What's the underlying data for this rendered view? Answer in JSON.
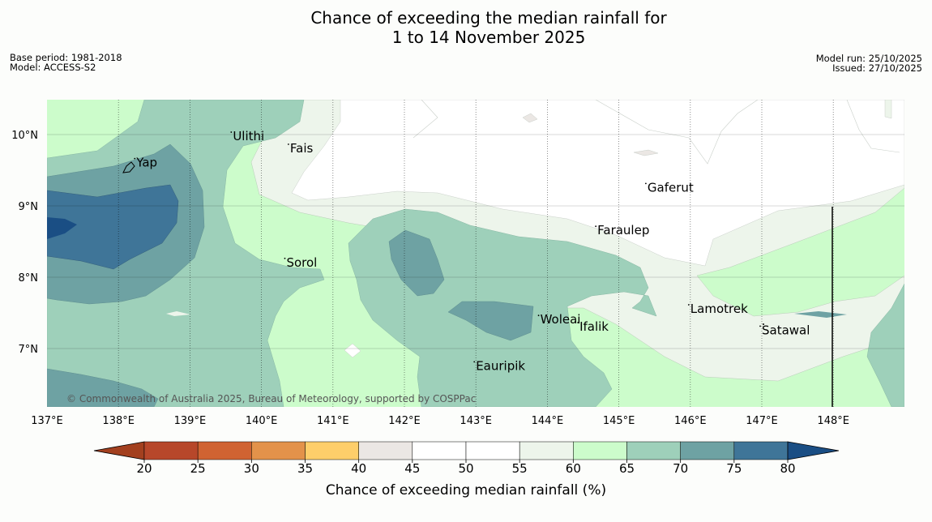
{
  "title_line1": "Chance of exceeding the median rainfall for",
  "title_line2": "1 to 14 November 2025",
  "meta_left": {
    "base_period": "Base period: 1981-2018",
    "model": "Model: ACCESS-S2"
  },
  "meta_right": {
    "model_run": "Model run: 25/10/2025",
    "issued": "Issued: 27/10/2025"
  },
  "map": {
    "lon_range": [
      137,
      149
    ],
    "lat_range": [
      6.2,
      10.5
    ],
    "lat_ticks": [
      "10°N",
      "9°N",
      "8°N",
      "7°N"
    ],
    "lon_ticks": [
      "137°E",
      "138°E",
      "139°E",
      "140°E",
      "141°E",
      "142°E",
      "143°E",
      "144°E",
      "145°E",
      "146°E",
      "147°E",
      "148°E"
    ],
    "places": [
      {
        "name": "Yap",
        "lon": 138.25,
        "lat": 9.55
      },
      {
        "name": "Ulithi",
        "lon": 139.6,
        "lat": 9.92
      },
      {
        "name": "Fais",
        "lon": 140.4,
        "lat": 9.75
      },
      {
        "name": "Gaferut",
        "lon": 145.4,
        "lat": 9.2
      },
      {
        "name": "Faraulep",
        "lon": 144.7,
        "lat": 8.6
      },
      {
        "name": "Sorol",
        "lon": 140.35,
        "lat": 8.15
      },
      {
        "name": "Lamotrek",
        "lon": 146.0,
        "lat": 7.5
      },
      {
        "name": "Satawal",
        "lon": 147.0,
        "lat": 7.2
      },
      {
        "name": "Woleai",
        "lon": 143.9,
        "lat": 7.35
      },
      {
        "name": "Ifalik",
        "lon": 144.45,
        "lat": 7.25
      },
      {
        "name": "Eauripik",
        "lon": 143.0,
        "lat": 6.7
      }
    ],
    "copyright": "© Commonwealth of Australia 2025, Bureau of Meteorology, supported by COSPPac"
  },
  "colorbar": {
    "label": "Chance of exceeding median rainfall (%)",
    "ticks": [
      "20",
      "25",
      "30",
      "35",
      "40",
      "45",
      "50",
      "55",
      "60",
      "65",
      "70",
      "75",
      "80"
    ],
    "colors": [
      "#a3401f",
      "#b7472a",
      "#d06332",
      "#e3924a",
      "#fece6a",
      "#ebe7e4",
      "#ffffff",
      "#ffffff",
      "#edf5eb",
      "#ccfccb",
      "#9ed0ba",
      "#6ea2a3",
      "#3f7598",
      "#1a4e84"
    ]
  }
}
